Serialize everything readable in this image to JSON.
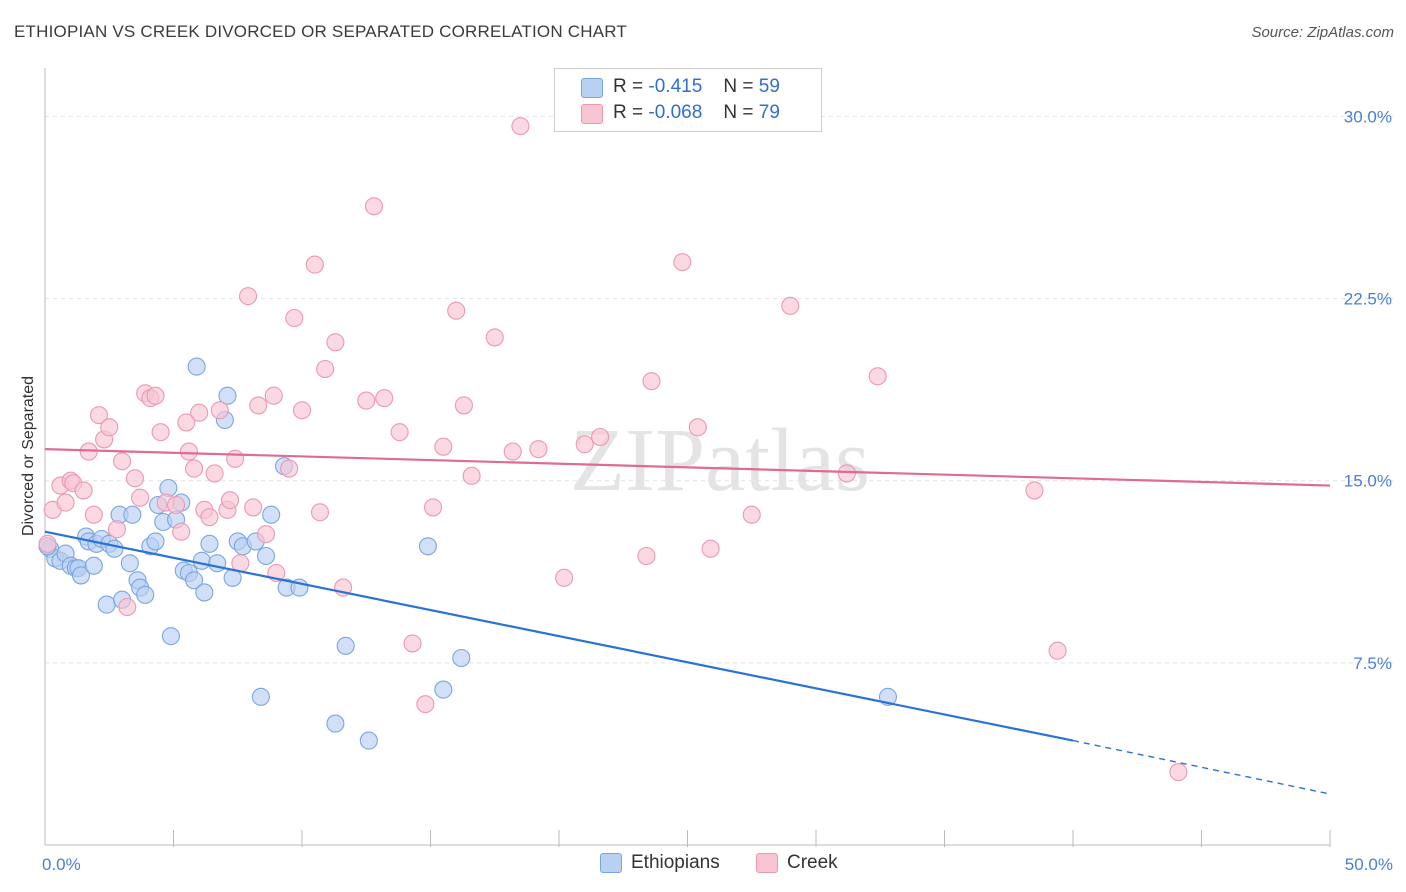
{
  "title": "ETHIOPIAN VS CREEK DIVORCED OR SEPARATED CORRELATION CHART",
  "source": "Source: ZipAtlas.com",
  "watermark": "ZIPatlas",
  "legend": {
    "rows": [
      {
        "r_label": "R =",
        "r_value": "-0.415",
        "n_label": "N =",
        "n_value": "59"
      },
      {
        "r_label": "R =",
        "r_value": "-0.068",
        "n_label": "N =",
        "n_value": "79"
      }
    ]
  },
  "bottom_legend": [
    "Ethiopians",
    "Creek"
  ],
  "colors": {
    "blue_fill": "#b8d0f2",
    "blue_stroke": "#7aa6e0",
    "blue_line": "#2b72d6",
    "pink_fill": "#f8c4d2",
    "pink_stroke": "#ec98b2",
    "pink_line": "#e06a96",
    "tick_text": "#4a7fd4",
    "grid": "#e2e2e2"
  },
  "chart_data": {
    "type": "scatter",
    "title": "ETHIOPIAN VS CREEK DIVORCED OR SEPARATED CORRELATION CHART",
    "xlabel": "",
    "ylabel": "Divorced or Separated",
    "xlim": [
      0,
      50
    ],
    "ylim": [
      0,
      31.5
    ],
    "x_tick_labels": [
      "0.0%",
      "50.0%"
    ],
    "y_ticks": [
      7.5,
      15.0,
      22.5,
      30.0
    ],
    "y_tick_labels": [
      "7.5%",
      "15.0%",
      "22.5%",
      "30.0%"
    ],
    "series": [
      {
        "name": "Ethiopians",
        "r": -0.415,
        "n": 59,
        "trend": {
          "x0": 0,
          "y0": 12.9,
          "x1": 40,
          "y1": 4.3,
          "dash_to_x": 50,
          "dash_to_y": 2.1
        },
        "points": [
          [
            0.2,
            12.2
          ],
          [
            0.4,
            11.8
          ],
          [
            0.6,
            11.7
          ],
          [
            0.8,
            12.0
          ],
          [
            1.0,
            11.5
          ],
          [
            1.2,
            11.4
          ],
          [
            1.3,
            11.4
          ],
          [
            1.4,
            11.1
          ],
          [
            1.6,
            12.7
          ],
          [
            1.7,
            12.5
          ],
          [
            1.9,
            11.5
          ],
          [
            2.0,
            12.4
          ],
          [
            2.2,
            12.6
          ],
          [
            2.4,
            9.9
          ],
          [
            2.5,
            12.4
          ],
          [
            2.7,
            12.2
          ],
          [
            2.9,
            13.6
          ],
          [
            3.0,
            10.1
          ],
          [
            3.3,
            11.6
          ],
          [
            3.4,
            13.6
          ],
          [
            3.6,
            10.9
          ],
          [
            3.7,
            10.6
          ],
          [
            3.9,
            10.3
          ],
          [
            4.1,
            12.3
          ],
          [
            4.3,
            12.5
          ],
          [
            4.4,
            14.0
          ],
          [
            4.6,
            13.3
          ],
          [
            4.8,
            14.7
          ],
          [
            4.9,
            8.6
          ],
          [
            5.1,
            13.4
          ],
          [
            5.3,
            14.1
          ],
          [
            5.4,
            11.3
          ],
          [
            5.6,
            11.2
          ],
          [
            5.8,
            10.9
          ],
          [
            5.9,
            19.7
          ],
          [
            6.1,
            11.7
          ],
          [
            6.2,
            10.4
          ],
          [
            6.4,
            12.4
          ],
          [
            6.7,
            11.6
          ],
          [
            7.0,
            17.5
          ],
          [
            7.1,
            18.5
          ],
          [
            7.3,
            11.0
          ],
          [
            7.5,
            12.5
          ],
          [
            7.7,
            12.3
          ],
          [
            8.2,
            12.5
          ],
          [
            8.4,
            6.1
          ],
          [
            8.6,
            11.9
          ],
          [
            8.8,
            13.6
          ],
          [
            9.3,
            15.6
          ],
          [
            9.4,
            10.6
          ],
          [
            9.9,
            10.6
          ],
          [
            11.3,
            5.0
          ],
          [
            11.7,
            8.2
          ],
          [
            12.6,
            4.3
          ],
          [
            14.9,
            12.3
          ],
          [
            15.5,
            6.4
          ],
          [
            16.2,
            7.7
          ],
          [
            32.8,
            6.1
          ],
          [
            0.1,
            12.3
          ]
        ]
      },
      {
        "name": "Creek",
        "r": -0.068,
        "n": 79,
        "trend": {
          "x0": 0,
          "y0": 16.3,
          "x1": 50,
          "y1": 14.8
        },
        "points": [
          [
            0.1,
            12.4
          ],
          [
            0.3,
            13.8
          ],
          [
            0.6,
            14.8
          ],
          [
            0.8,
            14.1
          ],
          [
            1.0,
            15.0
          ],
          [
            1.1,
            14.9
          ],
          [
            1.5,
            14.6
          ],
          [
            1.7,
            16.2
          ],
          [
            1.9,
            13.6
          ],
          [
            2.1,
            17.7
          ],
          [
            2.3,
            16.7
          ],
          [
            2.5,
            17.2
          ],
          [
            2.8,
            13.0
          ],
          [
            3.0,
            15.8
          ],
          [
            3.2,
            9.8
          ],
          [
            3.5,
            15.1
          ],
          [
            3.7,
            14.3
          ],
          [
            3.9,
            18.6
          ],
          [
            4.1,
            18.4
          ],
          [
            4.3,
            18.5
          ],
          [
            4.5,
            17.0
          ],
          [
            4.7,
            14.1
          ],
          [
            5.1,
            14.0
          ],
          [
            5.3,
            12.9
          ],
          [
            5.5,
            17.4
          ],
          [
            5.6,
            16.2
          ],
          [
            5.8,
            15.5
          ],
          [
            6.0,
            17.8
          ],
          [
            6.2,
            13.8
          ],
          [
            6.4,
            13.5
          ],
          [
            6.6,
            15.3
          ],
          [
            6.8,
            17.9
          ],
          [
            7.1,
            13.8
          ],
          [
            7.2,
            14.2
          ],
          [
            7.4,
            15.9
          ],
          [
            7.6,
            11.6
          ],
          [
            7.9,
            22.6
          ],
          [
            8.1,
            13.9
          ],
          [
            8.3,
            18.1
          ],
          [
            8.6,
            12.8
          ],
          [
            8.9,
            18.5
          ],
          [
            9.0,
            11.2
          ],
          [
            9.5,
            15.5
          ],
          [
            9.7,
            21.7
          ],
          [
            10.0,
            17.9
          ],
          [
            10.5,
            23.9
          ],
          [
            10.7,
            13.7
          ],
          [
            10.9,
            19.6
          ],
          [
            11.3,
            20.7
          ],
          [
            11.6,
            10.6
          ],
          [
            12.5,
            18.3
          ],
          [
            12.8,
            26.3
          ],
          [
            13.2,
            18.4
          ],
          [
            13.8,
            17.0
          ],
          [
            14.3,
            8.3
          ],
          [
            14.8,
            5.8
          ],
          [
            15.1,
            13.9
          ],
          [
            15.5,
            16.4
          ],
          [
            16.0,
            22.0
          ],
          [
            16.3,
            18.1
          ],
          [
            16.6,
            15.2
          ],
          [
            17.5,
            20.9
          ],
          [
            18.2,
            16.2
          ],
          [
            18.5,
            29.6
          ],
          [
            19.2,
            16.3
          ],
          [
            20.2,
            11.0
          ],
          [
            21.0,
            16.5
          ],
          [
            21.6,
            16.8
          ],
          [
            23.4,
            11.9
          ],
          [
            23.6,
            19.1
          ],
          [
            24.8,
            24.0
          ],
          [
            25.4,
            17.2
          ],
          [
            25.9,
            12.2
          ],
          [
            27.5,
            13.6
          ],
          [
            29.0,
            22.2
          ],
          [
            31.2,
            15.3
          ],
          [
            32.4,
            19.3
          ],
          [
            38.5,
            14.6
          ],
          [
            39.4,
            8.0
          ],
          [
            44.1,
            3.0
          ]
        ]
      }
    ]
  }
}
